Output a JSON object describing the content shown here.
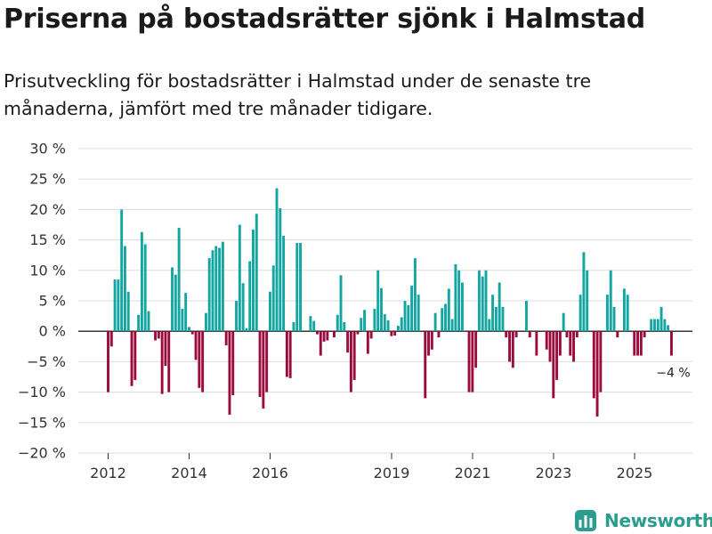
{
  "header": {
    "title": "Priserna på bostadsrätter sjönk i Halmstad",
    "subtitle": "Prisutveckling för bostadsrätter i Halmstad under de senaste tre månaderna, jämfört med tre månader tidigare."
  },
  "brand": {
    "name": "Newsworthy"
  },
  "colors": {
    "positive": "#14a5a0",
    "negative": "#9b0b3d",
    "grid": "#dddddd",
    "zero": "#222222",
    "brand": "#2a9d8f"
  },
  "chart_data": {
    "type": "bar",
    "title": "Priserna på bostadsrätter sjönk i Halmstad",
    "xlabel": "",
    "ylabel": "",
    "ylim": [
      -20,
      30
    ],
    "y_ticks": [
      {
        "value": 30,
        "label": "30 %"
      },
      {
        "value": 25,
        "label": "25 %"
      },
      {
        "value": 20,
        "label": "20 %"
      },
      {
        "value": 15,
        "label": "15 %"
      },
      {
        "value": 10,
        "label": "10 %"
      },
      {
        "value": 5,
        "label": "5 %"
      },
      {
        "value": 0,
        "label": "0 %"
      },
      {
        "value": -5,
        "label": "−5 %"
      },
      {
        "value": -10,
        "label": "−10 %"
      },
      {
        "value": -15,
        "label": "−15 %"
      },
      {
        "value": -20,
        "label": "−20 %"
      }
    ],
    "x_ticks": [
      {
        "value": 2012,
        "label": "2012"
      },
      {
        "value": 2014,
        "label": "2014"
      },
      {
        "value": 2016,
        "label": "2016"
      },
      {
        "value": 2019,
        "label": "2019"
      },
      {
        "value": 2021,
        "label": "2021"
      },
      {
        "value": 2023,
        "label": "2023"
      },
      {
        "value": 2025,
        "label": "2025"
      }
    ],
    "x_start": 2012.0,
    "x_step": 0.0833,
    "values": [
      -10,
      -2.5,
      8.5,
      8.5,
      20,
      14,
      6.5,
      -9,
      -8,
      2.7,
      16.3,
      14.3,
      3.3,
      0,
      -1.5,
      -1.2,
      -10.3,
      -5.7,
      -10,
      10.5,
      9.3,
      17,
      3.7,
      6.3,
      0.7,
      -0.5,
      -4.7,
      -9.3,
      -10,
      3,
      12,
      13.3,
      14,
      13.7,
      14.7,
      -2.3,
      -13.7,
      -10.5,
      5,
      17.5,
      7.9,
      0.5,
      11.5,
      16.7,
      19.3,
      -10.8,
      -12.7,
      -10,
      6.5,
      10.8,
      23.5,
      20.2,
      15.7,
      -7.5,
      -7.7,
      1.5,
      14.5,
      14.5,
      0,
      0,
      2.5,
      1.7,
      -0.5,
      -4,
      -1.7,
      -1.5,
      0,
      -1,
      2.7,
      9.2,
      1.5,
      -3.5,
      -10,
      -8,
      -0.5,
      2.2,
      3.5,
      -3.7,
      -1.2,
      3.7,
      10,
      7.1,
      2.8,
      1.8,
      -0.8,
      -0.7,
      0.9,
      2.3,
      5,
      4.3,
      7.5,
      12,
      6,
      0,
      -11,
      -4,
      -3,
      3,
      -1,
      3.8,
      4.5,
      7,
      2,
      11,
      10,
      8,
      0,
      -10,
      -10,
      -6,
      10,
      9,
      10,
      2,
      6,
      4,
      8,
      4,
      -1,
      -5,
      -6,
      -1,
      0,
      0,
      5,
      -1,
      0,
      -4,
      0,
      0,
      -3,
      -5,
      -11,
      -8,
      -4,
      3,
      -1,
      -4,
      -5,
      -1,
      6,
      13,
      10,
      0,
      -11,
      -14,
      -10,
      0,
      6,
      10,
      4,
      -1,
      0,
      7,
      6,
      0,
      -4,
      -4,
      -4,
      -1,
      0,
      2,
      2,
      2,
      4,
      2,
      1,
      -4
    ],
    "annotation": {
      "index": 167,
      "label": "−4 %"
    }
  }
}
